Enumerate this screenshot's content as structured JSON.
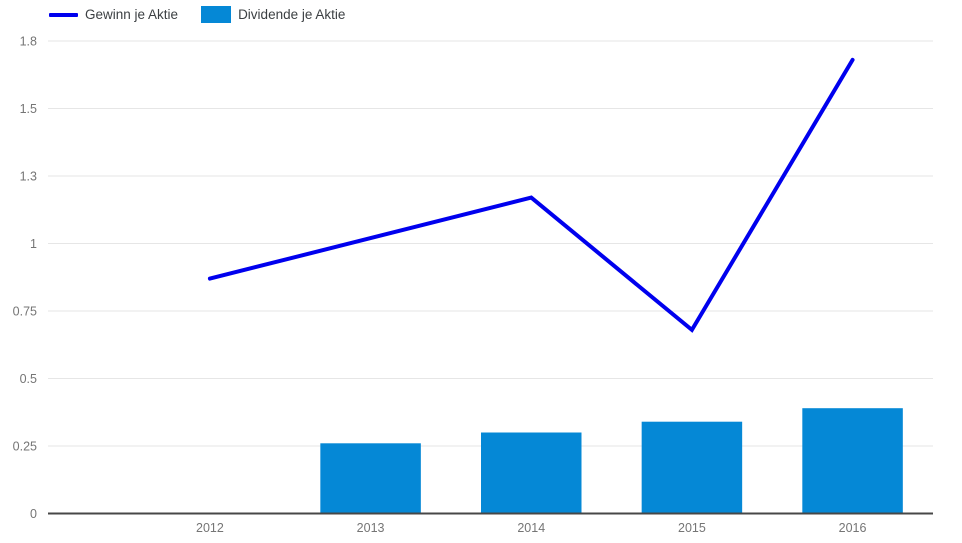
{
  "chart_data": {
    "type": "combo",
    "title": "",
    "categories": [
      "2012",
      "2013",
      "2014",
      "2015",
      "2016"
    ],
    "series": [
      {
        "name": "Gewinn je Aktie",
        "type": "line",
        "color": "#0000ee",
        "values": [
          0.87,
          1.02,
          1.17,
          0.68,
          1.68
        ]
      },
      {
        "name": "Dividende je Aktie",
        "type": "bar",
        "color": "#0588d6",
        "values": [
          0,
          0.26,
          0.3,
          0.34,
          0.39
        ]
      }
    ],
    "x_axis": {
      "labels": [
        "2012",
        "2013",
        "2014",
        "2015",
        "2016"
      ]
    },
    "y_axis": {
      "min": 0,
      "max": 1.75,
      "tick_interval": 0.25,
      "ticks": [
        {
          "value": 0,
          "label": "0"
        },
        {
          "value": 0.25,
          "label": "0.25"
        },
        {
          "value": 0.5,
          "label": "0.5"
        },
        {
          "value": 0.75,
          "label": "0.75"
        },
        {
          "value": 1,
          "label": "1"
        },
        {
          "value": 1.25,
          "label": "1.3"
        },
        {
          "value": 1.5,
          "label": "1.5"
        },
        {
          "value": 1.75,
          "label": "1.8"
        }
      ]
    },
    "legend_position": "top-left",
    "grid": true,
    "colors": {
      "grid": "#e6e6e6",
      "baseline": "#474747",
      "tick_label": "#757575",
      "legend_label": "#3c4043",
      "background": "#ffffff"
    }
  }
}
